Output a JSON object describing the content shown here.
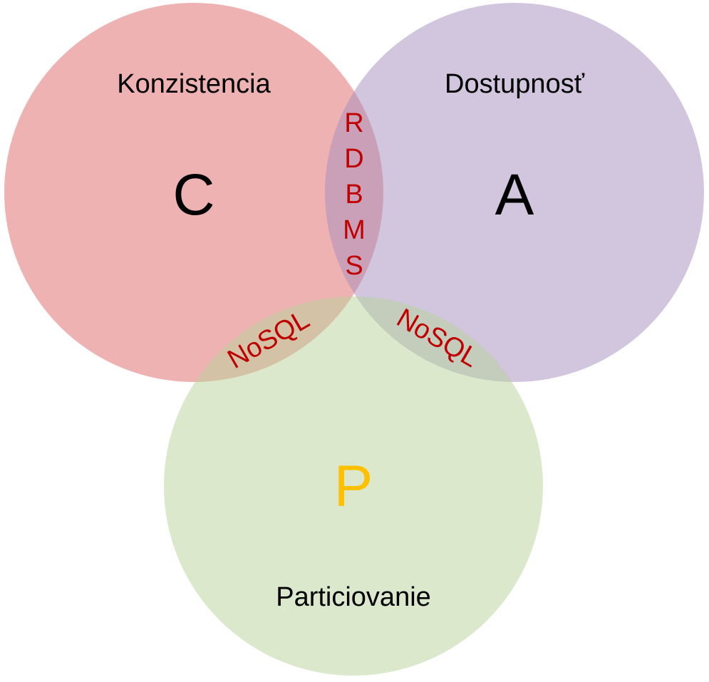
{
  "diagram": {
    "sets": {
      "c": {
        "title": "Konzistencia",
        "letter": "C",
        "fill": "#e06666",
        "letter_color": "#000000"
      },
      "a": {
        "title": "Dostupnosť",
        "letter": "A",
        "fill": "#a48dbd",
        "letter_color": "#000000"
      },
      "p": {
        "title": "Particiovanie",
        "letter": "P",
        "fill": "#b8d19a",
        "letter_color": "#ffc000"
      }
    },
    "overlaps": {
      "ca": {
        "text": [
          "R",
          "D",
          "B",
          "M",
          "S"
        ]
      },
      "cp": {
        "text": "NoSQL"
      },
      "ap": {
        "text": "NoSQL"
      }
    },
    "overlap_text_color": "#c00000"
  }
}
